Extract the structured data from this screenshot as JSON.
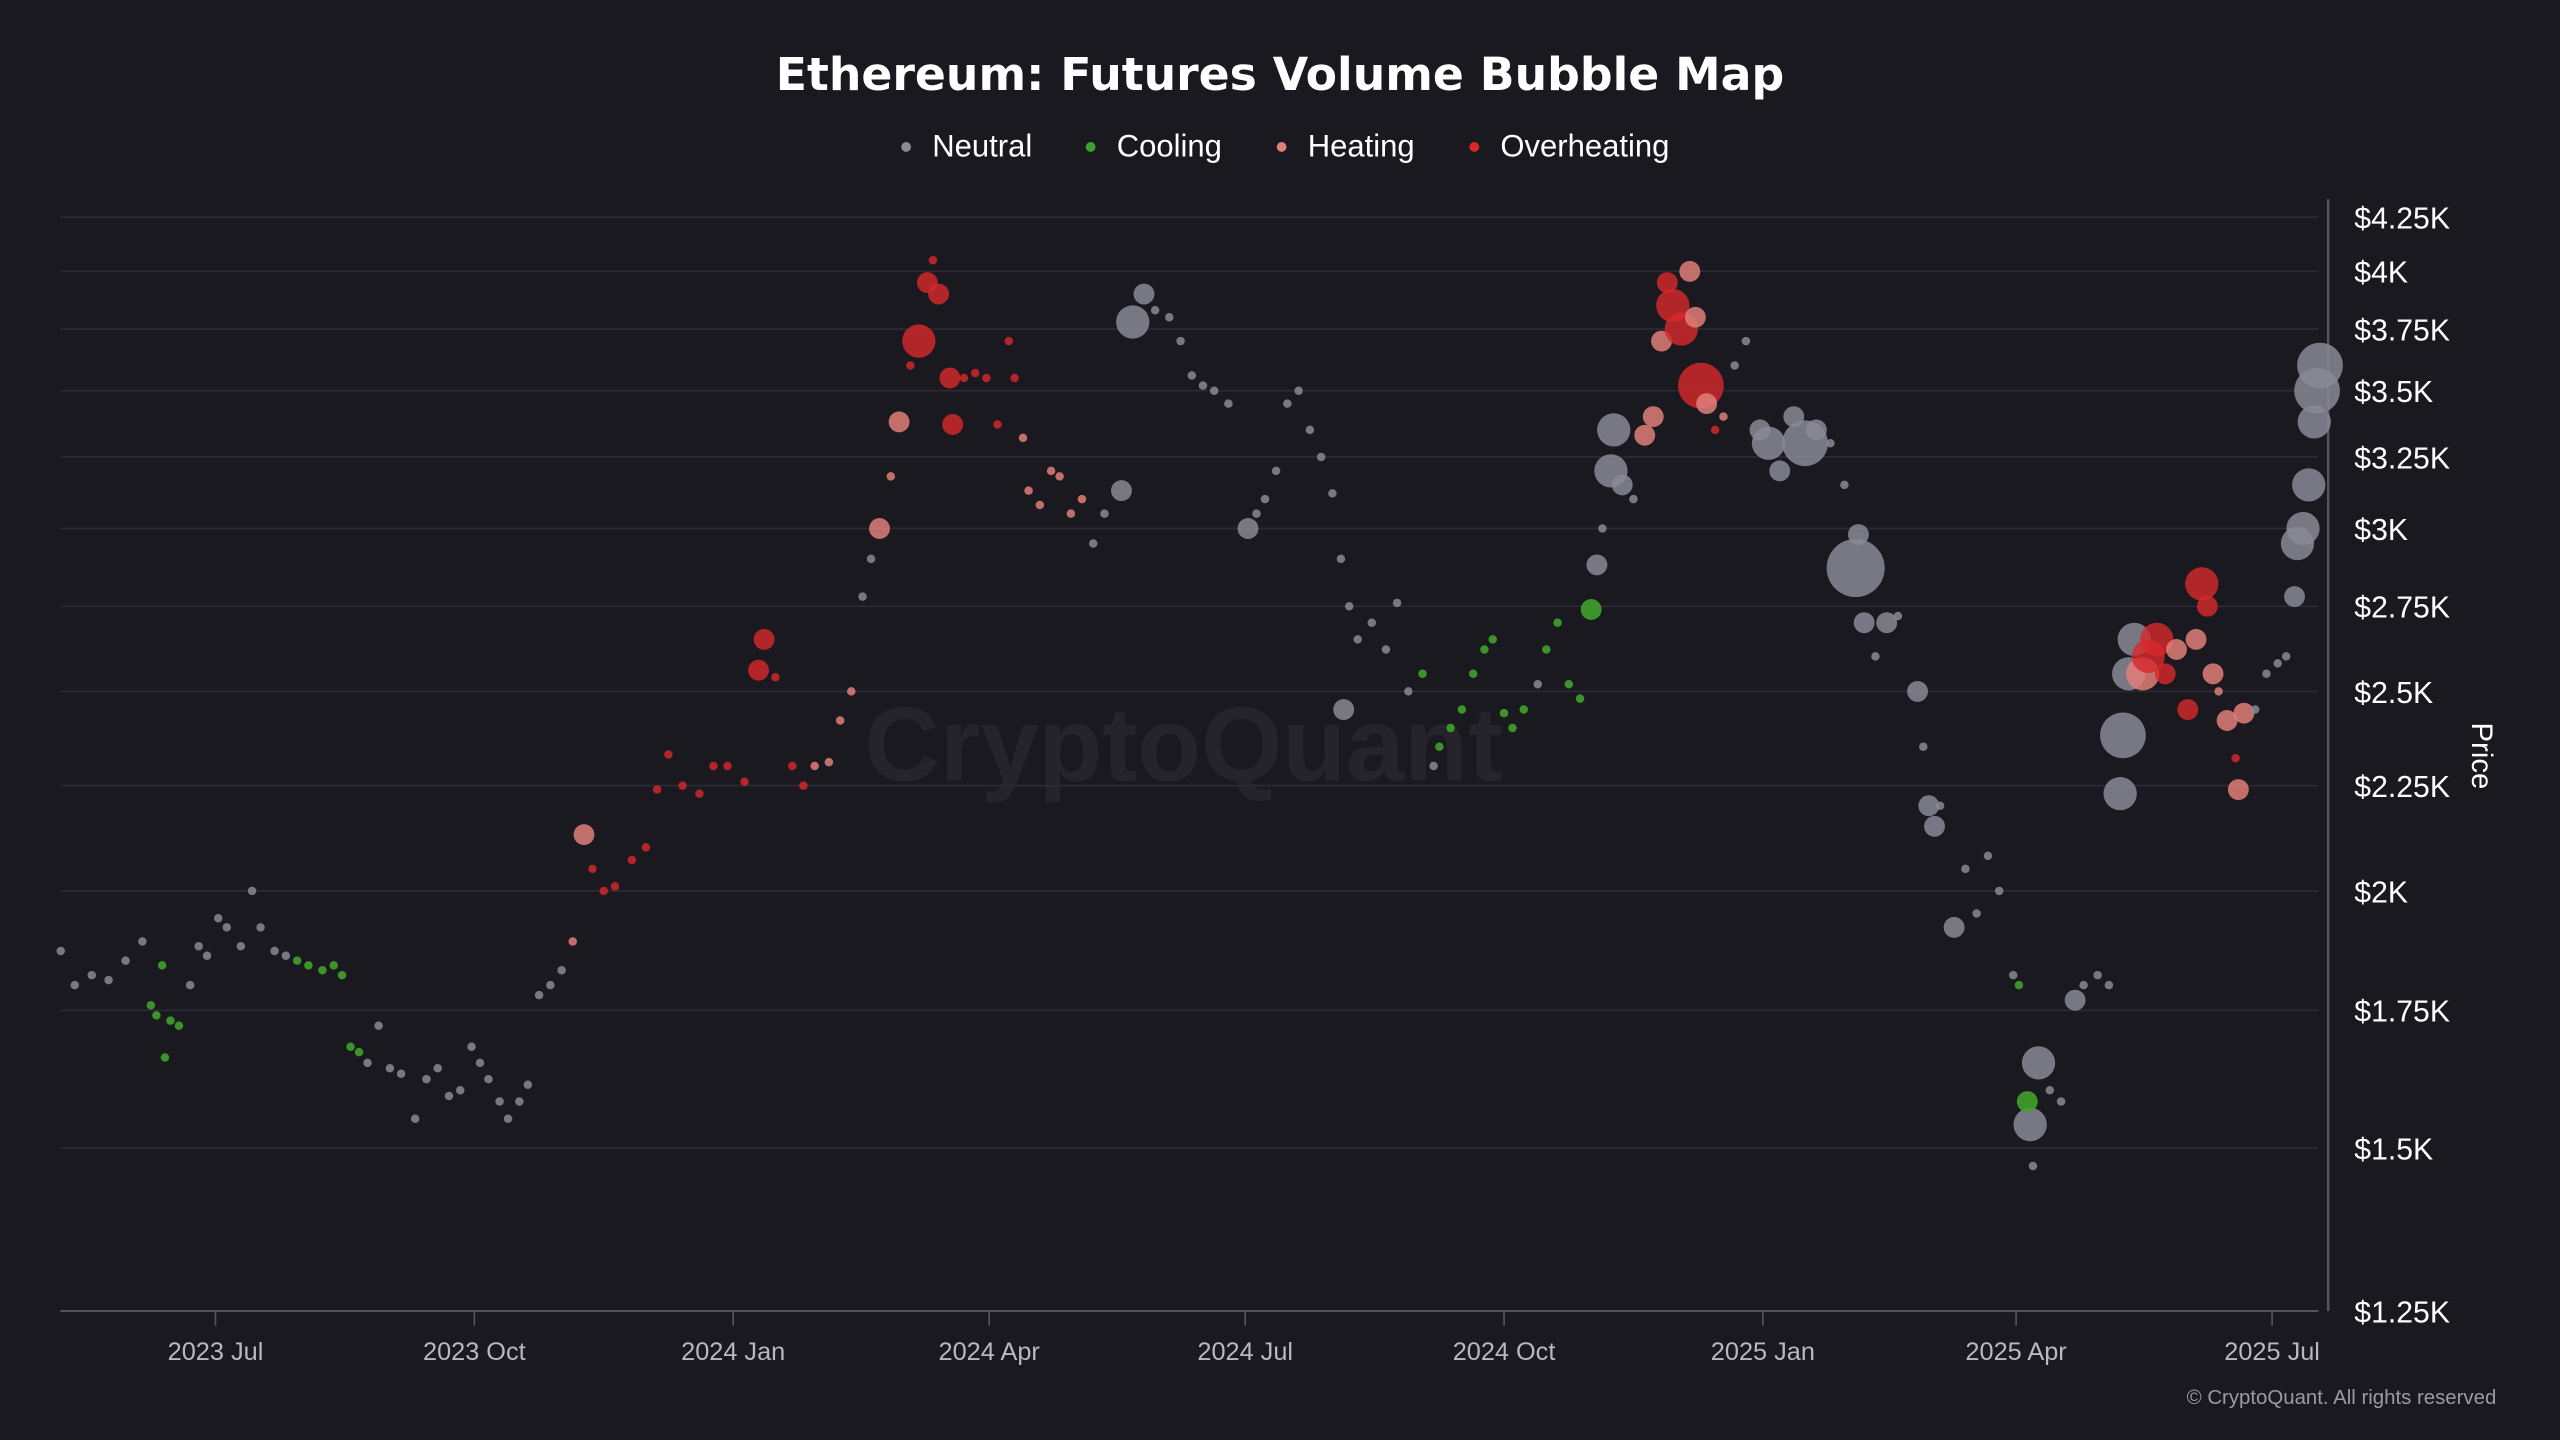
{
  "chart_data": {
    "type": "scatter",
    "title": "Ethereum: Futures Volume Bubble Map",
    "ylabel": "Price",
    "xlabel": "",
    "yscale": "log",
    "ylim": [
      1250,
      4250
    ],
    "xlim": [
      "2023-05-03",
      "2025-07-20"
    ],
    "grid": true,
    "legend_placement": "top-center",
    "legend": [
      {
        "key": "N",
        "label": "Neutral",
        "color": "#8a8a96"
      },
      {
        "key": "C",
        "label": "Cooling",
        "color": "#3fa12a"
      },
      {
        "key": "H",
        "label": "Heating",
        "color": "#e07f7a"
      },
      {
        "key": "O",
        "label": "Overheating",
        "color": "#d8282a"
      }
    ],
    "y_ticks": [
      {
        "value": 4250,
        "label": "$4.25K"
      },
      {
        "value": 4000,
        "label": "$4K"
      },
      {
        "value": 3750,
        "label": "$3.75K"
      },
      {
        "value": 3500,
        "label": "$3.5K"
      },
      {
        "value": 3250,
        "label": "$3.25K"
      },
      {
        "value": 3000,
        "label": "$3K"
      },
      {
        "value": 2750,
        "label": "$2.75K"
      },
      {
        "value": 2500,
        "label": "$2.5K"
      },
      {
        "value": 2250,
        "label": "$2.25K"
      },
      {
        "value": 2000,
        "label": "$2K"
      },
      {
        "value": 1750,
        "label": "$1.75K"
      },
      {
        "value": 1500,
        "label": "$1.5K"
      },
      {
        "value": 1250,
        "label": "$1.25K"
      }
    ],
    "x_ticks": [
      {
        "date": "2023-07-01",
        "label": "2023 Jul"
      },
      {
        "date": "2023-10-01",
        "label": "2023 Oct"
      },
      {
        "date": "2024-01-01",
        "label": "2024 Jan"
      },
      {
        "date": "2024-04-01",
        "label": "2024 Apr"
      },
      {
        "date": "2024-07-01",
        "label": "2024 Jul"
      },
      {
        "date": "2024-10-01",
        "label": "2024 Oct"
      },
      {
        "date": "2025-01-01",
        "label": "2025 Jan"
      },
      {
        "date": "2025-04-01",
        "label": "2025 Apr"
      },
      {
        "date": "2025-07-01",
        "label": "2025 Jul"
      }
    ],
    "point_fields": [
      "date",
      "price",
      "volume_size",
      "category"
    ],
    "points": [
      [
        "2023-05-07",
        1870,
        1,
        "N"
      ],
      [
        "2023-05-12",
        1800,
        1,
        "N"
      ],
      [
        "2023-05-18",
        1820,
        1,
        "N"
      ],
      [
        "2023-05-24",
        1810,
        1,
        "N"
      ],
      [
        "2023-05-30",
        1850,
        1,
        "N"
      ],
      [
        "2023-06-05",
        1890,
        1,
        "N"
      ],
      [
        "2023-06-08",
        1760,
        1,
        "C"
      ],
      [
        "2023-06-10",
        1740,
        1,
        "C"
      ],
      [
        "2023-06-13",
        1660,
        1,
        "C"
      ],
      [
        "2023-06-15",
        1730,
        1,
        "C"
      ],
      [
        "2023-06-12",
        1840,
        1,
        "C"
      ],
      [
        "2023-06-18",
        1720,
        1,
        "C"
      ],
      [
        "2023-06-22",
        1800,
        1,
        "N"
      ],
      [
        "2023-06-25",
        1880,
        1,
        "N"
      ],
      [
        "2023-06-28",
        1860,
        1,
        "N"
      ],
      [
        "2023-07-02",
        1940,
        1,
        "N"
      ],
      [
        "2023-07-05",
        1920,
        1,
        "N"
      ],
      [
        "2023-07-10",
        1880,
        1,
        "N"
      ],
      [
        "2023-07-14",
        2000,
        1,
        "N"
      ],
      [
        "2023-07-17",
        1920,
        1,
        "N"
      ],
      [
        "2023-07-22",
        1870,
        1,
        "N"
      ],
      [
        "2023-07-26",
        1860,
        1,
        "N"
      ],
      [
        "2023-07-30",
        1850,
        1,
        "C"
      ],
      [
        "2023-08-03",
        1840,
        1,
        "C"
      ],
      [
        "2023-08-08",
        1830,
        1,
        "C"
      ],
      [
        "2023-08-12",
        1840,
        1,
        "C"
      ],
      [
        "2023-08-15",
        1820,
        1,
        "C"
      ],
      [
        "2023-08-18",
        1680,
        1,
        "C"
      ],
      [
        "2023-08-21",
        1670,
        1,
        "C"
      ],
      [
        "2023-08-24",
        1650,
        1,
        "N"
      ],
      [
        "2023-08-28",
        1720,
        1,
        "N"
      ],
      [
        "2023-09-01",
        1640,
        1,
        "N"
      ],
      [
        "2023-09-05",
        1630,
        1,
        "N"
      ],
      [
        "2023-09-10",
        1550,
        1,
        "N"
      ],
      [
        "2023-09-14",
        1620,
        1,
        "N"
      ],
      [
        "2023-09-18",
        1640,
        1,
        "N"
      ],
      [
        "2023-09-22",
        1590,
        1,
        "N"
      ],
      [
        "2023-09-26",
        1600,
        1,
        "N"
      ],
      [
        "2023-09-30",
        1680,
        1,
        "N"
      ],
      [
        "2023-10-03",
        1650,
        1,
        "N"
      ],
      [
        "2023-10-06",
        1620,
        1,
        "N"
      ],
      [
        "2023-10-10",
        1580,
        1,
        "N"
      ],
      [
        "2023-10-13",
        1550,
        1,
        "N"
      ],
      [
        "2023-10-17",
        1580,
        1,
        "N"
      ],
      [
        "2023-10-20",
        1610,
        1,
        "N"
      ],
      [
        "2023-10-24",
        1780,
        1,
        "N"
      ],
      [
        "2023-10-28",
        1800,
        1,
        "N"
      ],
      [
        "2023-11-01",
        1830,
        1,
        "N"
      ],
      [
        "2023-11-05",
        1890,
        1,
        "H"
      ],
      [
        "2023-11-09",
        2130,
        2,
        "H"
      ],
      [
        "2023-11-12",
        2050,
        1,
        "O"
      ],
      [
        "2023-11-16",
        2000,
        1,
        "O"
      ],
      [
        "2023-11-20",
        2010,
        1,
        "O"
      ],
      [
        "2023-11-26",
        2070,
        1,
        "O"
      ],
      [
        "2023-12-01",
        2100,
        1,
        "O"
      ],
      [
        "2023-12-05",
        2240,
        1,
        "O"
      ],
      [
        "2023-12-09",
        2330,
        1,
        "O"
      ],
      [
        "2023-12-14",
        2250,
        1,
        "O"
      ],
      [
        "2023-12-20",
        2230,
        1,
        "O"
      ],
      [
        "2023-12-25",
        2300,
        1,
        "O"
      ],
      [
        "2023-12-30",
        2300,
        1,
        "O"
      ],
      [
        "2024-01-05",
        2260,
        1,
        "O"
      ],
      [
        "2024-01-10",
        2560,
        2,
        "O"
      ],
      [
        "2024-01-12",
        2650,
        2,
        "O"
      ],
      [
        "2024-01-16",
        2540,
        1,
        "O"
      ],
      [
        "2024-01-22",
        2300,
        1,
        "O"
      ],
      [
        "2024-01-26",
        2250,
        1,
        "O"
      ],
      [
        "2024-01-30",
        2300,
        1,
        "H"
      ],
      [
        "2024-02-04",
        2310,
        1,
        "H"
      ],
      [
        "2024-02-08",
        2420,
        1,
        "H"
      ],
      [
        "2024-02-12",
        2500,
        1,
        "H"
      ],
      [
        "2024-02-16",
        2780,
        1,
        "N"
      ],
      [
        "2024-02-19",
        2900,
        1,
        "N"
      ],
      [
        "2024-02-22",
        3000,
        2,
        "H"
      ],
      [
        "2024-02-26",
        3180,
        1,
        "H"
      ],
      [
        "2024-02-29",
        3380,
        2,
        "H"
      ],
      [
        "2024-03-04",
        3600,
        1,
        "O"
      ],
      [
        "2024-03-07",
        3700,
        3,
        "O"
      ],
      [
        "2024-03-10",
        3950,
        2,
        "O"
      ],
      [
        "2024-03-12",
        4050,
        1,
        "O"
      ],
      [
        "2024-03-14",
        3900,
        2,
        "O"
      ],
      [
        "2024-03-18",
        3550,
        2,
        "O"
      ],
      [
        "2024-03-19",
        3370,
        2,
        "O"
      ],
      [
        "2024-03-23",
        3550,
        1,
        "O"
      ],
      [
        "2024-03-27",
        3570,
        1,
        "O"
      ],
      [
        "2024-03-31",
        3550,
        1,
        "O"
      ],
      [
        "2024-04-04",
        3370,
        1,
        "O"
      ],
      [
        "2024-04-08",
        3700,
        1,
        "O"
      ],
      [
        "2024-04-10",
        3550,
        1,
        "O"
      ],
      [
        "2024-04-13",
        3320,
        1,
        "H"
      ],
      [
        "2024-04-15",
        3130,
        1,
        "H"
      ],
      [
        "2024-04-19",
        3080,
        1,
        "H"
      ],
      [
        "2024-04-23",
        3200,
        1,
        "H"
      ],
      [
        "2024-04-26",
        3180,
        1,
        "H"
      ],
      [
        "2024-04-30",
        3050,
        1,
        "H"
      ],
      [
        "2024-05-04",
        3100,
        1,
        "H"
      ],
      [
        "2024-05-08",
        2950,
        1,
        "N"
      ],
      [
        "2024-05-12",
        3050,
        1,
        "N"
      ],
      [
        "2024-05-18",
        3130,
        2,
        "N"
      ],
      [
        "2024-05-22",
        3780,
        3,
        "N"
      ],
      [
        "2024-05-26",
        3900,
        2,
        "N"
      ],
      [
        "2024-05-30",
        3830,
        1,
        "N"
      ],
      [
        "2024-06-04",
        3800,
        1,
        "N"
      ],
      [
        "2024-06-08",
        3700,
        1,
        "N"
      ],
      [
        "2024-06-12",
        3560,
        1,
        "N"
      ],
      [
        "2024-06-16",
        3520,
        1,
        "N"
      ],
      [
        "2024-06-20",
        3500,
        1,
        "N"
      ],
      [
        "2024-06-25",
        3450,
        1,
        "N"
      ],
      [
        "2024-07-02",
        3000,
        2,
        "N"
      ],
      [
        "2024-07-05",
        3050,
        1,
        "N"
      ],
      [
        "2024-07-08",
        3100,
        1,
        "N"
      ],
      [
        "2024-07-12",
        3200,
        1,
        "N"
      ],
      [
        "2024-07-16",
        3450,
        1,
        "N"
      ],
      [
        "2024-07-20",
        3500,
        1,
        "N"
      ],
      [
        "2024-07-24",
        3350,
        1,
        "N"
      ],
      [
        "2024-07-28",
        3250,
        1,
        "N"
      ],
      [
        "2024-08-01",
        3120,
        1,
        "N"
      ],
      [
        "2024-08-04",
        2900,
        1,
        "N"
      ],
      [
        "2024-08-05",
        2450,
        2,
        "N"
      ],
      [
        "2024-08-07",
        2750,
        1,
        "N"
      ],
      [
        "2024-08-10",
        2650,
        1,
        "N"
      ],
      [
        "2024-08-15",
        2700,
        1,
        "N"
      ],
      [
        "2024-08-20",
        2620,
        1,
        "N"
      ],
      [
        "2024-08-24",
        2760,
        1,
        "N"
      ],
      [
        "2024-08-28",
        2500,
        1,
        "N"
      ],
      [
        "2024-09-02",
        2550,
        1,
        "C"
      ],
      [
        "2024-09-06",
        2300,
        1,
        "N"
      ],
      [
        "2024-09-08",
        2350,
        1,
        "C"
      ],
      [
        "2024-09-12",
        2400,
        1,
        "C"
      ],
      [
        "2024-09-16",
        2450,
        1,
        "C"
      ],
      [
        "2024-09-20",
        2550,
        1,
        "C"
      ],
      [
        "2024-09-24",
        2620,
        1,
        "C"
      ],
      [
        "2024-09-27",
        2650,
        1,
        "C"
      ],
      [
        "2024-10-01",
        2440,
        1,
        "C"
      ],
      [
        "2024-10-04",
        2400,
        1,
        "C"
      ],
      [
        "2024-10-08",
        2450,
        1,
        "C"
      ],
      [
        "2024-10-13",
        2520,
        1,
        "N"
      ],
      [
        "2024-10-16",
        2620,
        1,
        "C"
      ],
      [
        "2024-10-20",
        2700,
        1,
        "C"
      ],
      [
        "2024-10-24",
        2520,
        1,
        "C"
      ],
      [
        "2024-10-28",
        2480,
        1,
        "C"
      ],
      [
        "2024-11-01",
        2740,
        2,
        "C"
      ],
      [
        "2024-11-03",
        2880,
        2,
        "N"
      ],
      [
        "2024-11-05",
        3000,
        1,
        "N"
      ],
      [
        "2024-11-08",
        3200,
        3,
        "N"
      ],
      [
        "2024-11-09",
        3350,
        3,
        "N"
      ],
      [
        "2024-11-12",
        3150,
        2,
        "N"
      ],
      [
        "2024-11-16",
        3100,
        1,
        "N"
      ],
      [
        "2024-11-20",
        3330,
        2,
        "H"
      ],
      [
        "2024-11-23",
        3400,
        2,
        "H"
      ],
      [
        "2024-11-26",
        3700,
        2,
        "H"
      ],
      [
        "2024-11-28",
        3950,
        2,
        "O"
      ],
      [
        "2024-11-30",
        3850,
        3,
        "O"
      ],
      [
        "2024-12-03",
        3750,
        3,
        "O"
      ],
      [
        "2024-12-06",
        4000,
        2,
        "H"
      ],
      [
        "2024-12-08",
        3800,
        2,
        "H"
      ],
      [
        "2024-12-10",
        3520,
        4,
        "O"
      ],
      [
        "2024-12-12",
        3450,
        2,
        "H"
      ],
      [
        "2024-12-15",
        3350,
        1,
        "O"
      ],
      [
        "2024-12-18",
        3400,
        1,
        "H"
      ],
      [
        "2024-12-22",
        3600,
        1,
        "N"
      ],
      [
        "2024-12-26",
        3700,
        1,
        "N"
      ],
      [
        "2024-12-31",
        3350,
        2,
        "N"
      ],
      [
        "2025-01-03",
        3300,
        3,
        "N"
      ],
      [
        "2025-01-07",
        3200,
        2,
        "N"
      ],
      [
        "2025-01-12",
        3400,
        2,
        "N"
      ],
      [
        "2025-01-16",
        3300,
        4,
        "N"
      ],
      [
        "2025-01-20",
        3350,
        2,
        "N"
      ],
      [
        "2025-01-25",
        3300,
        1,
        "N"
      ],
      [
        "2025-01-30",
        3150,
        1,
        "N"
      ],
      [
        "2025-02-03",
        2870,
        5,
        "N"
      ],
      [
        "2025-02-04",
        2980,
        2,
        "N"
      ],
      [
        "2025-02-06",
        2700,
        2,
        "N"
      ],
      [
        "2025-02-10",
        2600,
        1,
        "N"
      ],
      [
        "2025-02-14",
        2700,
        2,
        "N"
      ],
      [
        "2025-02-18",
        2720,
        1,
        "N"
      ],
      [
        "2025-02-25",
        2500,
        2,
        "N"
      ],
      [
        "2025-02-27",
        2350,
        1,
        "N"
      ],
      [
        "2025-03-01",
        2200,
        2,
        "N"
      ],
      [
        "2025-03-03",
        2150,
        2,
        "N"
      ],
      [
        "2025-03-05",
        2200,
        1,
        "N"
      ],
      [
        "2025-03-10",
        1920,
        2,
        "N"
      ],
      [
        "2025-03-14",
        2050,
        1,
        "N"
      ],
      [
        "2025-03-18",
        1950,
        1,
        "N"
      ],
      [
        "2025-03-22",
        2080,
        1,
        "N"
      ],
      [
        "2025-03-26",
        2000,
        1,
        "N"
      ],
      [
        "2025-03-31",
        1820,
        1,
        "N"
      ],
      [
        "2025-04-02",
        1800,
        1,
        "C"
      ],
      [
        "2025-04-06",
        1540,
        3,
        "N"
      ],
      [
        "2025-04-05",
        1580,
        2,
        "C"
      ],
      [
        "2025-04-07",
        1470,
        1,
        "N"
      ],
      [
        "2025-04-09",
        1650,
        3,
        "N"
      ],
      [
        "2025-04-13",
        1600,
        1,
        "N"
      ],
      [
        "2025-04-17",
        1580,
        1,
        "N"
      ],
      [
        "2025-04-22",
        1770,
        2,
        "N"
      ],
      [
        "2025-04-25",
        1800,
        1,
        "N"
      ],
      [
        "2025-04-30",
        1820,
        1,
        "N"
      ],
      [
        "2025-05-04",
        1800,
        1,
        "N"
      ],
      [
        "2025-05-08",
        2230,
        3,
        "N"
      ],
      [
        "2025-05-09",
        2380,
        4,
        "N"
      ],
      [
        "2025-05-11",
        2550,
        3,
        "N"
      ],
      [
        "2025-05-13",
        2650,
        3,
        "N"
      ],
      [
        "2025-05-16",
        2550,
        3,
        "H"
      ],
      [
        "2025-05-18",
        2600,
        3,
        "O"
      ],
      [
        "2025-05-21",
        2650,
        3,
        "O"
      ],
      [
        "2025-05-24",
        2550,
        2,
        "O"
      ],
      [
        "2025-05-28",
        2620,
        2,
        "H"
      ],
      [
        "2025-06-01",
        2450,
        2,
        "O"
      ],
      [
        "2025-06-04",
        2650,
        2,
        "H"
      ],
      [
        "2025-06-06",
        2820,
        3,
        "O"
      ],
      [
        "2025-06-08",
        2750,
        2,
        "O"
      ],
      [
        "2025-06-10",
        2550,
        2,
        "H"
      ],
      [
        "2025-06-12",
        2500,
        1,
        "H"
      ],
      [
        "2025-06-15",
        2420,
        2,
        "H"
      ],
      [
        "2025-06-18",
        2320,
        1,
        "O"
      ],
      [
        "2025-06-19",
        2240,
        2,
        "H"
      ],
      [
        "2025-06-21",
        2440,
        2,
        "H"
      ],
      [
        "2025-06-25",
        2450,
        1,
        "N"
      ],
      [
        "2025-06-29",
        2550,
        1,
        "N"
      ],
      [
        "2025-07-03",
        2580,
        1,
        "N"
      ],
      [
        "2025-07-06",
        2600,
        1,
        "N"
      ],
      [
        "2025-07-09",
        2780,
        2,
        "N"
      ],
      [
        "2025-07-10",
        2950,
        3,
        "N"
      ],
      [
        "2025-07-12",
        3000,
        3,
        "N"
      ],
      [
        "2025-07-14",
        3150,
        3,
        "N"
      ],
      [
        "2025-07-16",
        3380,
        3,
        "N"
      ],
      [
        "2025-07-17",
        3500,
        4,
        "N"
      ],
      [
        "2025-07-18",
        3600,
        4,
        "N"
      ]
    ]
  },
  "watermark": "CryptoQuant",
  "copyright": "© CryptoQuant. All rights reserved",
  "colors": {
    "background": "#1a191f",
    "grid": "#2c2b35",
    "axis": "#55545e"
  }
}
